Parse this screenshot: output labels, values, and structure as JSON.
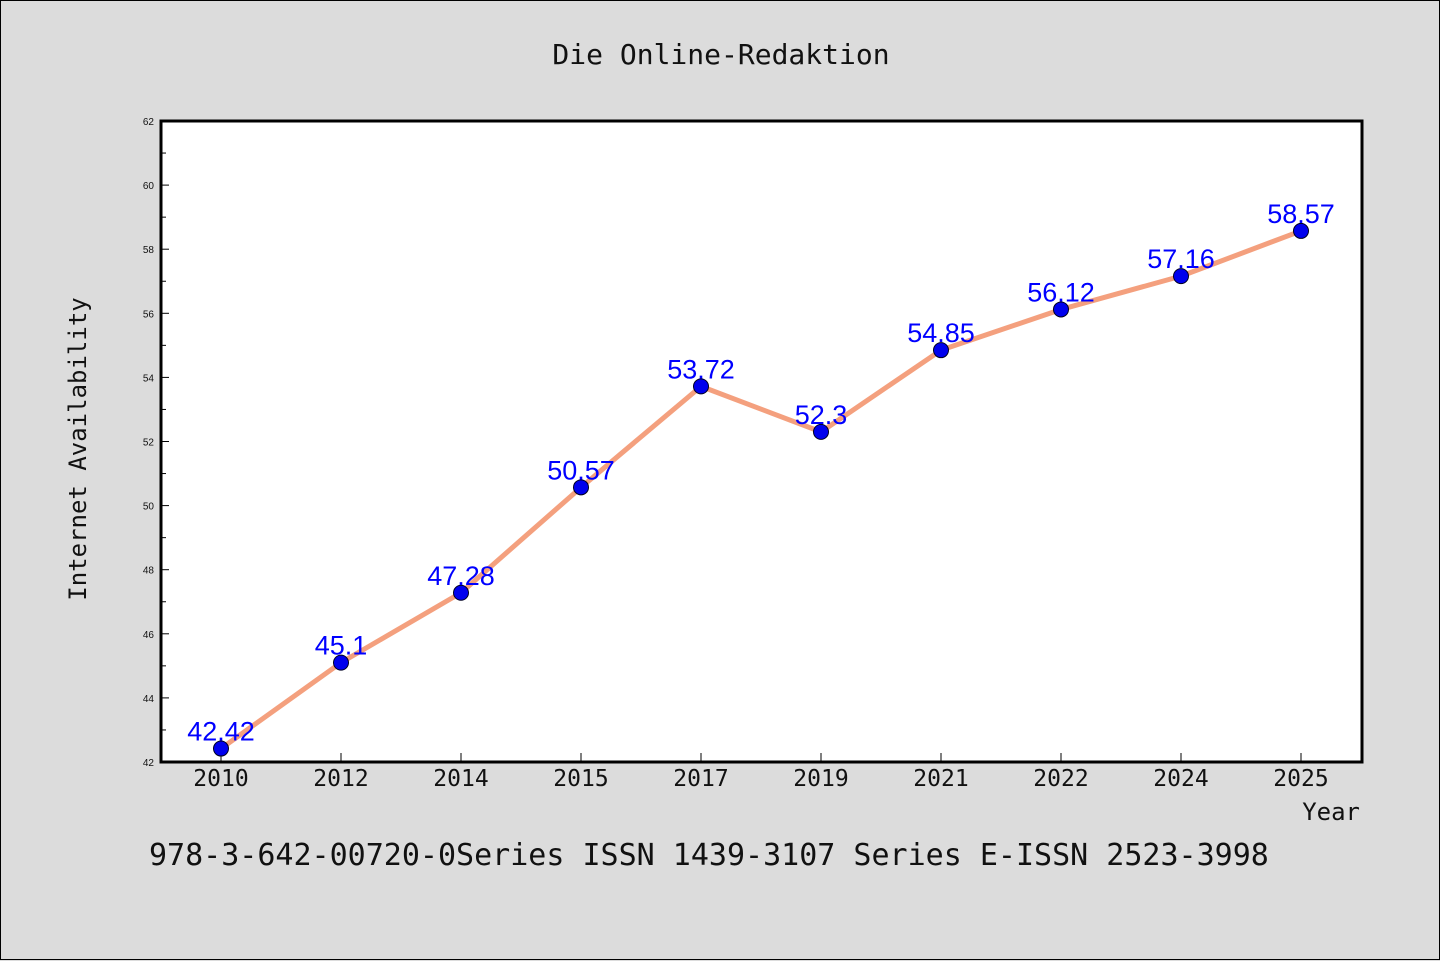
{
  "chart_data": {
    "type": "line",
    "title": "Die Online-Redaktion",
    "xlabel": "Year",
    "ylabel": "Internet Availability",
    "categories": [
      "2010",
      "2012",
      "2014",
      "2015",
      "2017",
      "2019",
      "2021",
      "2022",
      "2024",
      "2025"
    ],
    "series": [
      {
        "values": [
          42.42,
          45.1,
          47.28,
          50.57,
          53.72,
          52.3,
          54.85,
          56.12,
          57.16,
          58.57
        ]
      }
    ],
    "data_labels": [
      "42.42",
      "45.1",
      "47.28",
      "50.57",
      "53.72",
      "52.3",
      "54.85",
      "56.12",
      "57.16",
      "58.57"
    ],
    "ylim": [
      42,
      62
    ],
    "yticks": [
      "42",
      "44",
      "46",
      "48",
      "50",
      "52",
      "54",
      "56",
      "58",
      "60",
      "62"
    ],
    "grid": false,
    "colors": {
      "line": "#f4a07e",
      "marker": "#0000ee",
      "label": "#0000ff",
      "background": "#dcdcdc",
      "plot_area": "#ffffff"
    }
  },
  "footer": "978-3-642-00720-0Series ISSN 1439-3107 Series E-ISSN 2523-3998"
}
